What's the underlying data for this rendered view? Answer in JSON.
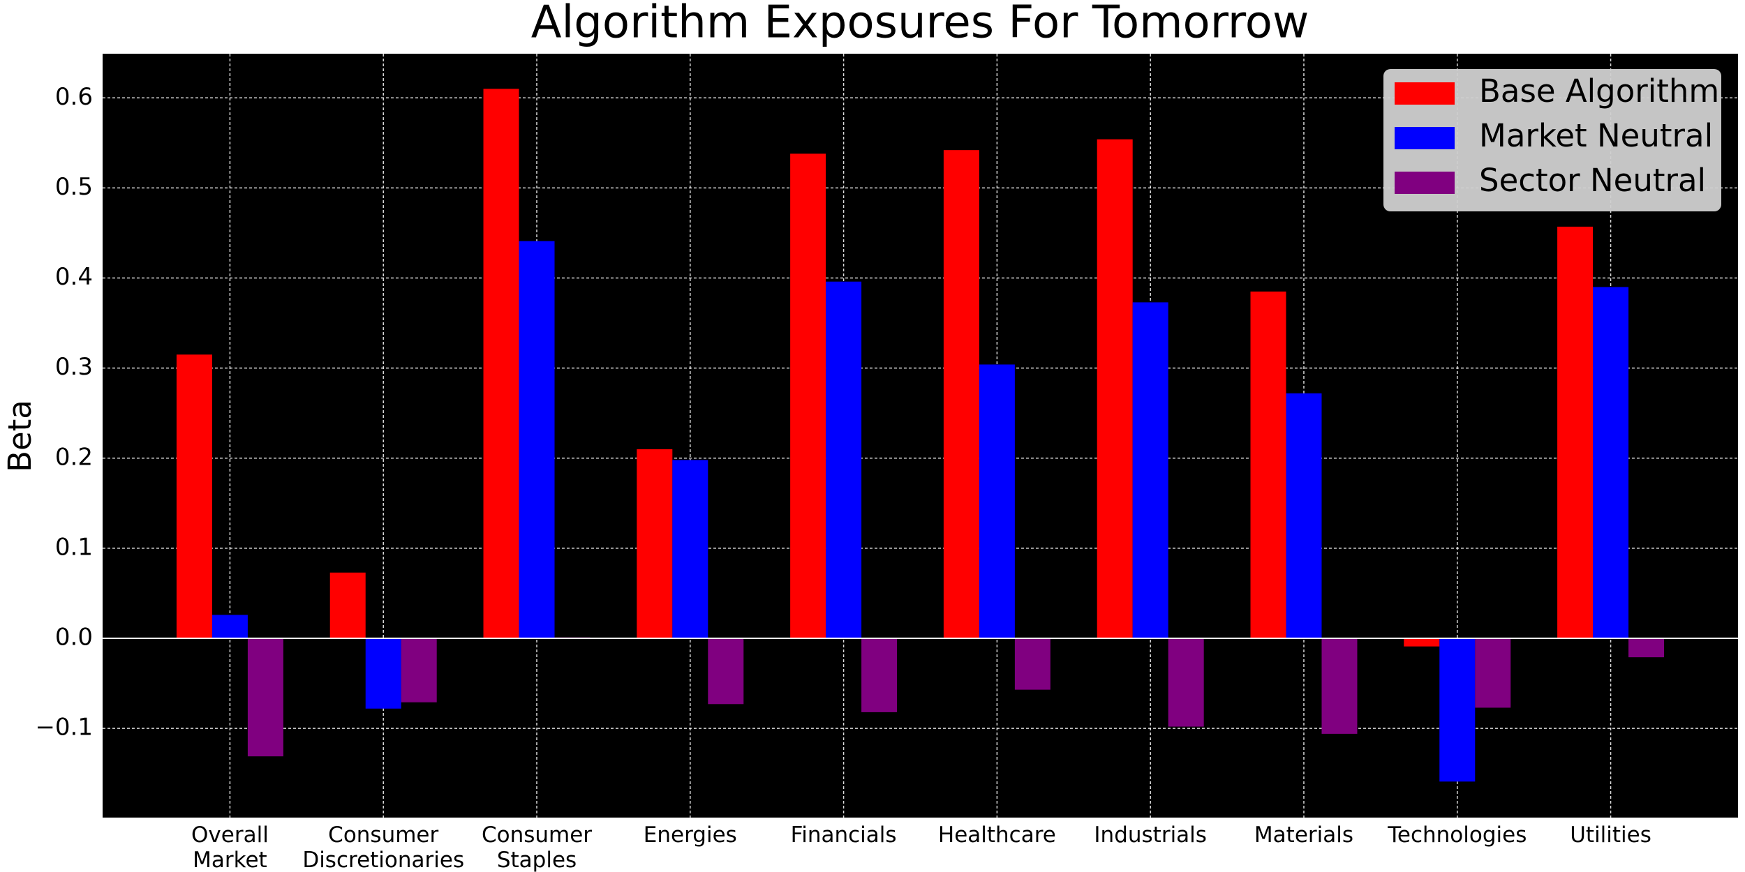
{
  "chart_data": {
    "type": "bar",
    "title": "Algorithm Exposures For Tomorrow",
    "y_label": "Beta",
    "categories": [
      "Overall\nMarket",
      "Consumer\nDiscretionaries",
      "Consumer\nStaples",
      "Energies",
      "Financials",
      "Healthcare",
      "Industrials",
      "Materials",
      "Technologies",
      "Utilities"
    ],
    "series": [
      {
        "name": "Base Algorithm",
        "color": "#ff0000",
        "values": [
          0.315,
          0.073,
          0.61,
          0.21,
          0.538,
          0.542,
          0.554,
          0.385,
          -0.009,
          0.457
        ]
      },
      {
        "name": "Market Neutral",
        "color": "#0000ff",
        "values": [
          0.026,
          -0.078,
          0.441,
          0.198,
          0.396,
          0.304,
          0.373,
          0.272,
          -0.159,
          0.39
        ]
      },
      {
        "name": "Sector Neutral",
        "color": "#800080",
        "values": [
          -0.131,
          -0.071,
          0.001,
          -0.073,
          -0.082,
          -0.057,
          -0.098,
          -0.106,
          -0.077,
          -0.021
        ]
      }
    ],
    "ylim": [
      -0.199,
      0.649
    ],
    "yticks": [
      {
        "value": -0.1,
        "label": "−0.1"
      },
      {
        "value": 0,
        "label": "0.0"
      },
      0.1,
      0.2,
      0.3,
      0.4,
      0.5,
      0.6
    ],
    "grid": true,
    "legend": "upper right"
  }
}
